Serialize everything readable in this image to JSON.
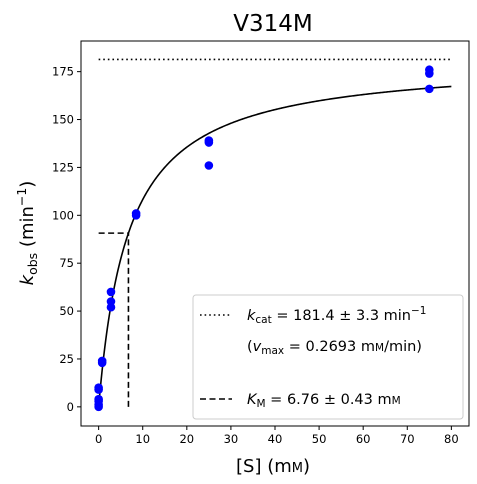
{
  "chart_data": {
    "type": "scatter",
    "title": "V314M",
    "xlabel": {
      "main": "[S] (m",
      "unit_sc": "m",
      "close": ")"
    },
    "ylabel": {
      "k": "k",
      "sub": "obs",
      "unit": " (min",
      "sup": "−1",
      "close": ")"
    },
    "xlim": [
      -4,
      84
    ],
    "ylim": [
      -10,
      191
    ],
    "xticks": [
      0,
      10,
      20,
      30,
      40,
      50,
      60,
      70,
      80
    ],
    "yticks": [
      0,
      25,
      50,
      75,
      100,
      125,
      150,
      175
    ],
    "kcat": 181.4,
    "km": 6.76,
    "km_marker_y": 90.7,
    "points": [
      {
        "x": 0,
        "y": 0
      },
      {
        "x": 0,
        "y": 1
      },
      {
        "x": 0,
        "y": 3
      },
      {
        "x": 0,
        "y": 4
      },
      {
        "x": 0,
        "y": 9
      },
      {
        "x": 0,
        "y": 10
      },
      {
        "x": 0.8,
        "y": 23
      },
      {
        "x": 0.8,
        "y": 24
      },
      {
        "x": 2.8,
        "y": 52
      },
      {
        "x": 2.8,
        "y": 55
      },
      {
        "x": 2.8,
        "y": 60
      },
      {
        "x": 8.5,
        "y": 100
      },
      {
        "x": 8.5,
        "y": 101
      },
      {
        "x": 25,
        "y": 126
      },
      {
        "x": 25,
        "y": 138
      },
      {
        "x": 25,
        "y": 139
      },
      {
        "x": 75,
        "y": 166
      },
      {
        "x": 75,
        "y": 174
      },
      {
        "x": 75,
        "y": 176
      }
    ],
    "point_color": "#0000ff",
    "fit_color": "#000000",
    "legend": {
      "placement": "lower-right",
      "kcat": {
        "k": "k",
        "sub": "cat",
        "value": " = 181.4 ± 3.3 min",
        "sup": "−1"
      },
      "vmax": {
        "open": "(",
        "v": "v",
        "sub": "max",
        "value": " = 0.2693 m",
        "unit_sc": "m",
        "tail": "/min)"
      },
      "km": {
        "k": "K",
        "sub": "M",
        "value": " = 6.76 ± 0.43 m",
        "unit_sc": "m"
      }
    }
  }
}
